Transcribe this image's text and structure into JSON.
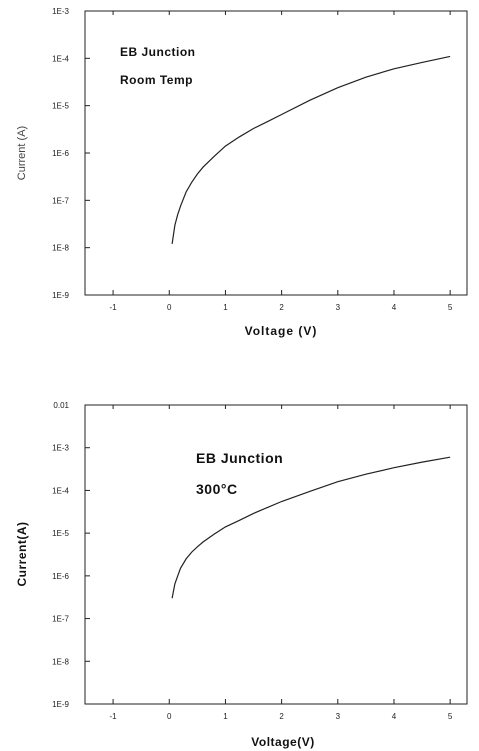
{
  "chart_data": [
    {
      "type": "line",
      "title": "",
      "xlabel": "Voltage (V)",
      "ylabel": "Current (A)",
      "xlim": [
        -1.5,
        5.3
      ],
      "ylim": [
        1e-09,
        0.001
      ],
      "yscale": "log",
      "x_ticks": [
        -1,
        0,
        1,
        2,
        3,
        4,
        5
      ],
      "x_tick_labels": [
        "-1",
        "0",
        "1",
        "2",
        "3",
        "4",
        "5"
      ],
      "y_ticks": [
        1e-09,
        1e-08,
        1e-07,
        1e-06,
        1e-05,
        0.0001,
        0.001
      ],
      "y_tick_labels": [
        "1E-9",
        "1E-8",
        "1E-7",
        "1E-6",
        "1E-5",
        "1E-4",
        "1E-3"
      ],
      "grid": false,
      "annotations": [
        "EB Junction",
        "Room Temp"
      ],
      "series": [
        {
          "x": [
            0.05,
            0.1,
            0.15,
            0.2,
            0.3,
            0.4,
            0.5,
            0.6,
            0.8,
            1.0,
            1.25,
            1.5,
            1.75,
            2.0,
            2.5,
            3.0,
            3.5,
            4.0,
            4.5,
            5.0
          ],
          "y": [
            1.2e-08,
            3e-08,
            5e-08,
            7.5e-08,
            1.5e-07,
            2.4e-07,
            3.6e-07,
            5e-07,
            8.5e-07,
            1.4e-06,
            2.2e-06,
            3.3e-06,
            4.6e-06,
            6.5e-06,
            1.3e-05,
            2.4e-05,
            4e-05,
            6e-05,
            8.2e-05,
            0.00011
          ]
        }
      ]
    },
    {
      "type": "line",
      "title": "",
      "xlabel": "Voltage(V)",
      "ylabel": "Current(A)",
      "xlim": [
        -1.5,
        5.3
      ],
      "ylim": [
        1e-09,
        0.01
      ],
      "yscale": "log",
      "x_ticks": [
        -1,
        0,
        1,
        2,
        3,
        4,
        5
      ],
      "x_tick_labels": [
        "-1",
        "0",
        "1",
        "2",
        "3",
        "4",
        "5"
      ],
      "y_ticks": [
        1e-09,
        1e-08,
        1e-07,
        1e-06,
        1e-05,
        0.0001,
        0.001,
        0.01
      ],
      "y_tick_labels": [
        "1E-9",
        "1E-8",
        "1E-7",
        "1E-6",
        "1E-5",
        "1E-4",
        "1E-3",
        "0.01"
      ],
      "grid": false,
      "annotations": [
        "EB Junction",
        "300°C"
      ],
      "series": [
        {
          "x": [
            0.05,
            0.1,
            0.15,
            0.2,
            0.3,
            0.4,
            0.5,
            0.6,
            0.8,
            1.0,
            1.25,
            1.5,
            1.75,
            2.0,
            2.5,
            3.0,
            3.5,
            4.0,
            4.5,
            5.0
          ],
          "y": [
            3e-07,
            6.5e-07,
            1e-06,
            1.5e-06,
            2.5e-06,
            3.6e-06,
            4.8e-06,
            6.2e-06,
            9.5e-06,
            1.4e-05,
            2e-05,
            2.9e-05,
            4e-05,
            5.5e-05,
            9.5e-05,
            0.00016,
            0.00024,
            0.00034,
            0.00046,
            0.0006
          ]
        }
      ]
    }
  ]
}
